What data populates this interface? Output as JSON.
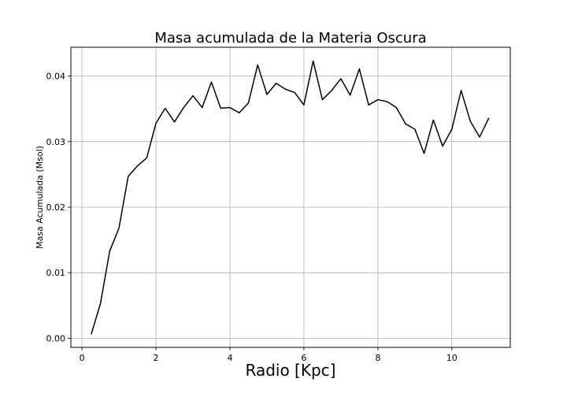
{
  "chart_data": {
    "type": "line",
    "title": "Masa acumulada de la Materia Oscura",
    "xlabel": "Radio [Kpc]",
    "ylabel": "Masa Acumulada (Msol)",
    "xlim": [
      -0.3,
      11.58
    ],
    "ylim": [
      -0.0014,
      0.0444
    ],
    "xticks": [
      0,
      2,
      4,
      6,
      8,
      10
    ],
    "xtick_labels": [
      "0",
      "2",
      "4",
      "6",
      "8",
      "10"
    ],
    "yticks": [
      0.0,
      0.01,
      0.02,
      0.03,
      0.04
    ],
    "ytick_labels": [
      "0.00",
      "0.01",
      "0.02",
      "0.03",
      "0.04"
    ],
    "grid": true,
    "line_color": "#000000",
    "series": [
      {
        "x": [
          0.25,
          0.5,
          0.75,
          1.0,
          1.25,
          1.5,
          1.75,
          2.0,
          2.25,
          2.5,
          2.75,
          3.0,
          3.25,
          3.5,
          3.75,
          4.0,
          4.25,
          4.5,
          4.75,
          5.0,
          5.25,
          5.5,
          5.75,
          6.0,
          6.25,
          6.5,
          6.75,
          7.0,
          7.25,
          7.5,
          7.75,
          8.0,
          8.25,
          8.5,
          8.75,
          9.0,
          9.25,
          9.5,
          9.75,
          10.0,
          10.25,
          10.5,
          10.75,
          11.0
        ],
        "y": [
          0.0006,
          0.0053,
          0.0133,
          0.0168,
          0.0247,
          0.0263,
          0.0275,
          0.0328,
          0.0351,
          0.033,
          0.0352,
          0.037,
          0.0352,
          0.0391,
          0.0351,
          0.0352,
          0.0344,
          0.0359,
          0.0417,
          0.0372,
          0.0389,
          0.038,
          0.0375,
          0.0356,
          0.0423,
          0.0364,
          0.0378,
          0.0396,
          0.0371,
          0.0411,
          0.0356,
          0.0364,
          0.0361,
          0.0352,
          0.0327,
          0.0319,
          0.0282,
          0.0333,
          0.0293,
          0.0319,
          0.0378,
          0.0331,
          0.0307,
          0.0336
        ]
      }
    ]
  }
}
